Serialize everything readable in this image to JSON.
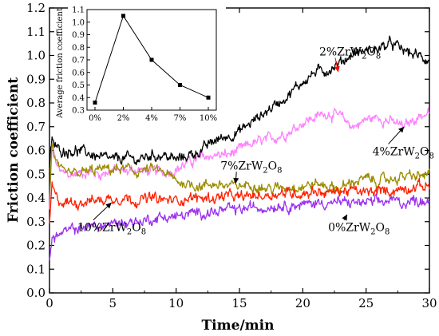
{
  "chart_data": {
    "main": {
      "type": "line",
      "xlabel": "Time/min",
      "ylabel": "Friction coefficient",
      "xlim": [
        0,
        30
      ],
      "ylim": [
        0.0,
        1.2
      ],
      "xticks": [
        0,
        5,
        10,
        15,
        20,
        25,
        30
      ],
      "yticks": [
        0.0,
        0.1,
        0.2,
        0.3,
        0.4,
        0.5,
        0.6,
        0.7,
        0.8,
        0.9,
        1.0,
        1.1,
        1.2
      ],
      "grid": false,
      "series": [
        {
          "color": "#ff80ff",
          "x": [
            0,
            0.2,
            0.5,
            1,
            2,
            3,
            4,
            5,
            6,
            7,
            8,
            9,
            10,
            11,
            12,
            13,
            14,
            15,
            16,
            17,
            18,
            19,
            20,
            21,
            22,
            23,
            24,
            25,
            26,
            27,
            28,
            29,
            30
          ],
          "y": [
            0.35,
            0.62,
            0.55,
            0.5,
            0.5,
            0.51,
            0.5,
            0.52,
            0.51,
            0.52,
            0.51,
            0.51,
            0.52,
            0.55,
            0.57,
            0.58,
            0.58,
            0.6,
            0.63,
            0.64,
            0.66,
            0.68,
            0.72,
            0.74,
            0.76,
            0.74,
            0.7,
            0.73,
            0.74,
            0.72,
            0.7,
            0.74,
            0.76
          ]
        },
        {
          "color": "#000000",
          "x": [
            0,
            0.2,
            0.5,
            1,
            2,
            3,
            4,
            5,
            6,
            7,
            8,
            9,
            10,
            11,
            12,
            13,
            14,
            15,
            16,
            17,
            18,
            19,
            20,
            21,
            22,
            23,
            24,
            25,
            26,
            27,
            28,
            29,
            30
          ],
          "y": [
            0.52,
            0.65,
            0.61,
            0.6,
            0.6,
            0.59,
            0.57,
            0.56,
            0.57,
            0.56,
            0.58,
            0.58,
            0.56,
            0.58,
            0.6,
            0.64,
            0.66,
            0.68,
            0.72,
            0.76,
            0.8,
            0.84,
            0.89,
            0.93,
            0.94,
            0.97,
            1.01,
            1.02,
            1.03,
            1.05,
            1.02,
            1.0,
            0.98
          ]
        },
        {
          "color": "#9b8c00",
          "x": [
            0,
            0.2,
            0.5,
            1,
            2,
            3,
            4,
            5,
            6,
            7,
            8,
            9,
            10,
            11,
            12,
            13,
            14,
            15,
            16,
            17,
            18,
            19,
            20,
            21,
            22,
            23,
            24,
            25,
            26,
            27,
            28,
            29,
            30
          ],
          "y": [
            0.4,
            0.63,
            0.55,
            0.5,
            0.5,
            0.51,
            0.52,
            0.52,
            0.52,
            0.51,
            0.52,
            0.51,
            0.47,
            0.46,
            0.45,
            0.46,
            0.45,
            0.45,
            0.46,
            0.44,
            0.44,
            0.45,
            0.45,
            0.46,
            0.45,
            0.44,
            0.47,
            0.48,
            0.47,
            0.48,
            0.49,
            0.49,
            0.5
          ]
        },
        {
          "color": "#ff2000",
          "x": [
            0,
            0.2,
            0.5,
            1,
            2,
            3,
            4,
            5,
            6,
            7,
            8,
            9,
            10,
            11,
            12,
            13,
            14,
            15,
            16,
            17,
            18,
            19,
            20,
            21,
            22,
            23,
            24,
            25,
            26,
            27,
            28,
            29,
            30
          ],
          "y": [
            0.3,
            0.45,
            0.4,
            0.38,
            0.38,
            0.39,
            0.39,
            0.4,
            0.4,
            0.39,
            0.4,
            0.39,
            0.39,
            0.4,
            0.4,
            0.4,
            0.41,
            0.4,
            0.41,
            0.41,
            0.42,
            0.42,
            0.42,
            0.43,
            0.42,
            0.43,
            0.43,
            0.42,
            0.43,
            0.43,
            0.44,
            0.45,
            0.45
          ]
        },
        {
          "color": "#9a30f0",
          "x": [
            0,
            0.2,
            0.5,
            1,
            2,
            3,
            4,
            5,
            6,
            7,
            8,
            9,
            10,
            11,
            12,
            13,
            14,
            15,
            16,
            17,
            18,
            19,
            20,
            21,
            22,
            23,
            24,
            25,
            26,
            27,
            28,
            29,
            30
          ],
          "y": [
            0.15,
            0.22,
            0.24,
            0.25,
            0.27,
            0.28,
            0.28,
            0.29,
            0.3,
            0.3,
            0.31,
            0.32,
            0.32,
            0.33,
            0.34,
            0.34,
            0.35,
            0.35,
            0.36,
            0.36,
            0.37,
            0.37,
            0.37,
            0.38,
            0.38,
            0.38,
            0.38,
            0.38,
            0.38,
            0.39,
            0.38,
            0.39,
            0.39
          ]
        }
      ],
      "annotations": [
        {
          "base": "2%ZrW",
          "sub1": "2",
          "mid": "O",
          "sub2": "8",
          "x": 21.3,
          "y": 1.0,
          "arrow_to_x": 22.8,
          "arrow_to_y": 0.93,
          "arrow_color": "#ff0000"
        },
        {
          "base": "4%ZrW",
          "sub1": "2",
          "mid": "O",
          "sub2": "8",
          "x": 25.5,
          "y": 0.58,
          "arrow_to_x": 28.0,
          "arrow_to_y": 0.7,
          "arrow_color": "#000000"
        },
        {
          "base": "7%ZrW",
          "sub1": "2",
          "mid": "O",
          "sub2": "8",
          "x": 13.5,
          "y": 0.52,
          "arrow_to_x": 14.7,
          "arrow_to_y": 0.46,
          "arrow_color": "#000000"
        },
        {
          "base": "10%ZrW",
          "sub1": "2",
          "mid": "O",
          "sub2": "8",
          "x": 2.2,
          "y": 0.26,
          "arrow_to_x": 4.9,
          "arrow_to_y": 0.38,
          "arrow_color": "#000000"
        },
        {
          "base": "0%ZrW",
          "sub1": "2",
          "mid": "O",
          "sub2": "8",
          "x": 22.0,
          "y": 0.26,
          "arrow_to_x": 23.5,
          "arrow_to_y": 0.33,
          "arrow_color": "#000000"
        }
      ]
    },
    "inset": {
      "type": "line",
      "xlabel": "",
      "ylabel": "Average friction coefficient",
      "categories": [
        "0%",
        "2%",
        "4%",
        "7%",
        "10%"
      ],
      "values": [
        0.36,
        1.05,
        0.7,
        0.5,
        0.4
      ],
      "ylim": [
        0.3,
        1.1
      ],
      "yticks": [
        0.3,
        0.4,
        0.5,
        0.6,
        0.7,
        0.8,
        0.9,
        1.0,
        1.1
      ],
      "line_color": "#000000",
      "marker": "square"
    }
  }
}
